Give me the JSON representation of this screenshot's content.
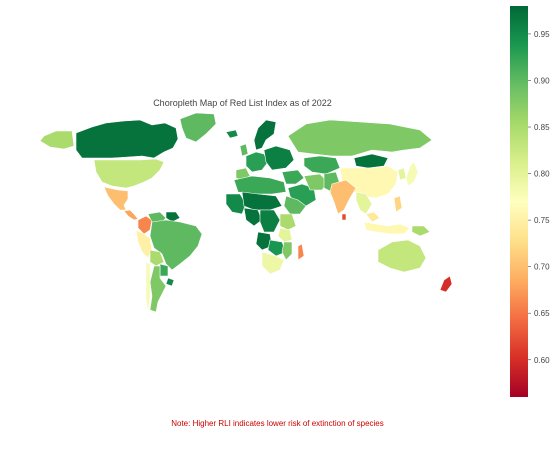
{
  "map": {
    "title": "Choropleth Map of Red List Index as of 2022",
    "projection": "world",
    "regions": [
      {
        "id": "canada",
        "value": 0.97
      },
      {
        "id": "usa",
        "value": 0.83
      },
      {
        "id": "alaska",
        "value": 0.85
      },
      {
        "id": "greenland",
        "value": 0.9
      },
      {
        "id": "mexico",
        "value": 0.7
      },
      {
        "id": "central-america",
        "value": 0.68
      },
      {
        "id": "colombia",
        "value": 0.66
      },
      {
        "id": "venezuela",
        "value": 0.9
      },
      {
        "id": "guianas",
        "value": 0.97
      },
      {
        "id": "ecuador-peru",
        "value": 0.75
      },
      {
        "id": "brazil",
        "value": 0.9
      },
      {
        "id": "bolivia",
        "value": 0.85
      },
      {
        "id": "paraguay",
        "value": 0.92
      },
      {
        "id": "argentina",
        "value": 0.88
      },
      {
        "id": "chile",
        "value": 0.78
      },
      {
        "id": "uruguay",
        "value": 0.95
      },
      {
        "id": "iceland",
        "value": 0.95
      },
      {
        "id": "scandinavia",
        "value": 0.97
      },
      {
        "id": "uk",
        "value": 0.9
      },
      {
        "id": "western-europe",
        "value": 0.93
      },
      {
        "id": "iberia",
        "value": 0.88
      },
      {
        "id": "eastern-europe",
        "value": 0.96
      },
      {
        "id": "russia",
        "value": 0.88
      },
      {
        "id": "kazakhstan",
        "value": 0.92
      },
      {
        "id": "mongolia",
        "value": 0.97
      },
      {
        "id": "china",
        "value": 0.76
      },
      {
        "id": "japan",
        "value": 0.78
      },
      {
        "id": "korea",
        "value": 0.8
      },
      {
        "id": "middle-east",
        "value": 0.92
      },
      {
        "id": "arabia",
        "value": 0.93
      },
      {
        "id": "iran",
        "value": 0.88
      },
      {
        "id": "afghanistan-pakistan",
        "value": 0.9
      },
      {
        "id": "india",
        "value": 0.7
      },
      {
        "id": "sri-lanka",
        "value": 0.62
      },
      {
        "id": "indochina",
        "value": 0.8
      },
      {
        "id": "malaysia",
        "value": 0.74
      },
      {
        "id": "indonesia",
        "value": 0.76
      },
      {
        "id": "philippines",
        "value": 0.72
      },
      {
        "id": "papua",
        "value": 0.85
      },
      {
        "id": "north-africa",
        "value": 0.92
      },
      {
        "id": "sahel",
        "value": 0.97
      },
      {
        "id": "west-africa",
        "value": 0.95
      },
      {
        "id": "nigeria-cameroon",
        "value": 0.97
      },
      {
        "id": "horn-africa",
        "value": 0.9
      },
      {
        "id": "central-africa",
        "value": 0.96
      },
      {
        "id": "east-africa",
        "value": 0.85
      },
      {
        "id": "tanzania",
        "value": 0.8
      },
      {
        "id": "angola",
        "value": 0.97
      },
      {
        "id": "zambia-zimbabwe",
        "value": 0.94
      },
      {
        "id": "mozambique",
        "value": 0.88
      },
      {
        "id": "southern-africa",
        "value": 0.79
      },
      {
        "id": "madagascar",
        "value": 0.66
      },
      {
        "id": "australia",
        "value": 0.83
      },
      {
        "id": "new-zealand",
        "value": 0.6
      }
    ]
  },
  "colorbar": {
    "scale": "RdYlGn",
    "min": 0.56,
    "max": 0.98,
    "ticks": [
      "0.60",
      "0.65",
      "0.70",
      "0.75",
      "0.80",
      "0.85",
      "0.90",
      "0.95"
    ],
    "colors": [
      "#a50026",
      "#d73027",
      "#f46d43",
      "#fdae61",
      "#fee08b",
      "#ffffbf",
      "#d9ef8b",
      "#a6d96a",
      "#66bd63",
      "#1a9850",
      "#006837"
    ]
  },
  "note": "Note: Higher RLI indicates lower risk of extinction of species"
}
